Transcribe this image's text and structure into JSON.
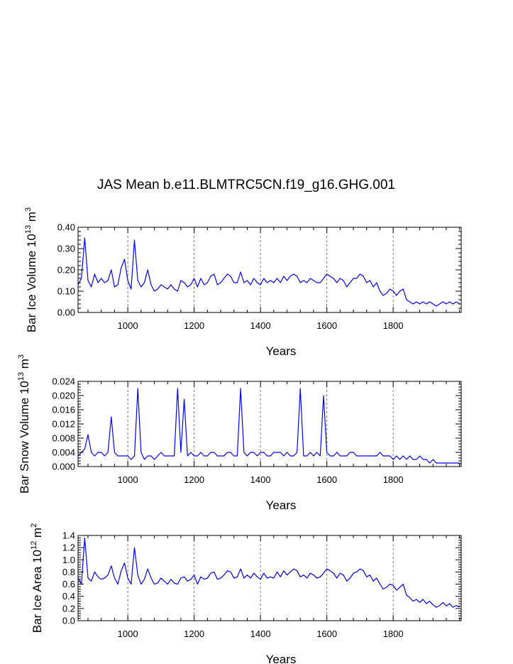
{
  "title": "JAS Mean b.e11.BLMTRC5CN.f19_g16.GHG.001",
  "chart_data": [
    {
      "type": "line",
      "ylabel": "Bar Ice Volume 10",
      "ylabel_exp": "13",
      "ylabel_unit": " m",
      "ylabel_unit_exp": "3",
      "xlabel": "Years",
      "xlim": [
        850,
        2005
      ],
      "ylim": [
        0,
        0.4
      ],
      "yticks": [
        "0.00",
        "0.10",
        "0.20",
        "0.30",
        "0.40"
      ],
      "ytick_values": [
        0,
        0.1,
        0.2,
        0.3,
        0.4
      ],
      "xticks": [
        "1000",
        "1200",
        "1400",
        "1600",
        "1800"
      ],
      "xtick_values": [
        1000,
        1200,
        1400,
        1600,
        1800
      ],
      "grid": "vertical dashed at labeled x ticks",
      "series_color": "#0000ff",
      "series": [
        {
          "x_start": 850,
          "x_step": 10,
          "values": [
            0.13,
            0.16,
            0.35,
            0.15,
            0.12,
            0.18,
            0.14,
            0.16,
            0.14,
            0.15,
            0.2,
            0.12,
            0.13,
            0.21,
            0.25,
            0.15,
            0.11,
            0.34,
            0.15,
            0.12,
            0.14,
            0.2,
            0.13,
            0.1,
            0.11,
            0.13,
            0.12,
            0.11,
            0.13,
            0.11,
            0.1,
            0.15,
            0.14,
            0.12,
            0.13,
            0.16,
            0.12,
            0.16,
            0.13,
            0.14,
            0.17,
            0.18,
            0.13,
            0.14,
            0.16,
            0.18,
            0.17,
            0.14,
            0.14,
            0.19,
            0.14,
            0.15,
            0.13,
            0.16,
            0.14,
            0.13,
            0.16,
            0.14,
            0.15,
            0.14,
            0.16,
            0.14,
            0.17,
            0.15,
            0.17,
            0.18,
            0.17,
            0.14,
            0.15,
            0.14,
            0.16,
            0.15,
            0.14,
            0.14,
            0.16,
            0.18,
            0.17,
            0.16,
            0.14,
            0.16,
            0.15,
            0.12,
            0.14,
            0.16,
            0.16,
            0.18,
            0.17,
            0.14,
            0.15,
            0.12,
            0.14,
            0.1,
            0.08,
            0.09,
            0.11,
            0.1,
            0.08,
            0.1,
            0.11,
            0.06,
            0.05,
            0.04,
            0.05,
            0.04,
            0.05,
            0.04,
            0.05,
            0.04,
            0.03,
            0.04,
            0.05,
            0.04,
            0.05,
            0.04,
            0.05,
            0.04
          ]
        }
      ]
    },
    {
      "type": "line",
      "ylabel": "Bar Snow Volume 10",
      "ylabel_exp": "13",
      "ylabel_unit": " m",
      "ylabel_unit_exp": "3",
      "xlabel": "Years",
      "xlim": [
        850,
        2005
      ],
      "ylim": [
        0,
        0.024
      ],
      "yticks": [
        "0.000",
        "0.004",
        "0.008",
        "0.012",
        "0.016",
        "0.020",
        "0.024"
      ],
      "ytick_values": [
        0,
        0.004,
        0.008,
        0.012,
        0.016,
        0.02,
        0.024
      ],
      "xticks": [
        "1000",
        "1200",
        "1400",
        "1600",
        "1800"
      ],
      "xtick_values": [
        1000,
        1200,
        1400,
        1600,
        1800
      ],
      "grid": "vertical dashed at labeled x ticks",
      "series_color": "#0000ff",
      "series": [
        {
          "x_start": 850,
          "x_step": 10,
          "values": [
            0.003,
            0.004,
            0.005,
            0.009,
            0.004,
            0.003,
            0.004,
            0.004,
            0.003,
            0.004,
            0.014,
            0.004,
            0.003,
            0.003,
            0.003,
            0.003,
            0.002,
            0.003,
            0.022,
            0.004,
            0.002,
            0.003,
            0.003,
            0.002,
            0.003,
            0.004,
            0.003,
            0.003,
            0.003,
            0.003,
            0.022,
            0.004,
            0.019,
            0.003,
            0.004,
            0.003,
            0.003,
            0.004,
            0.003,
            0.003,
            0.004,
            0.004,
            0.003,
            0.003,
            0.003,
            0.004,
            0.004,
            0.003,
            0.003,
            0.022,
            0.004,
            0.003,
            0.004,
            0.004,
            0.003,
            0.004,
            0.004,
            0.003,
            0.003,
            0.004,
            0.004,
            0.004,
            0.003,
            0.004,
            0.003,
            0.003,
            0.004,
            0.022,
            0.003,
            0.003,
            0.004,
            0.003,
            0.004,
            0.003,
            0.02,
            0.004,
            0.003,
            0.003,
            0.004,
            0.003,
            0.003,
            0.003,
            0.004,
            0.004,
            0.003,
            0.003,
            0.003,
            0.003,
            0.003,
            0.003,
            0.003,
            0.004,
            0.003,
            0.003,
            0.003,
            0.002,
            0.003,
            0.002,
            0.003,
            0.002,
            0.003,
            0.002,
            0.002,
            0.003,
            0.002,
            0.002,
            0.001,
            0.002,
            0.001,
            0.001,
            0.001,
            0.001,
            0.001,
            0.001,
            0.001,
            0.001
          ]
        }
      ]
    },
    {
      "type": "line",
      "ylabel": "Bar Ice Area 10",
      "ylabel_exp": "12",
      "ylabel_unit": " m",
      "ylabel_unit_exp": "2",
      "xlabel": "Years",
      "xlim": [
        850,
        2005
      ],
      "ylim": [
        0,
        1.4
      ],
      "yticks": [
        "0.0",
        "0.2",
        "0.4",
        "0.6",
        "0.8",
        "1.0",
        "1.2",
        "1.4"
      ],
      "ytick_values": [
        0,
        0.2,
        0.4,
        0.6,
        0.8,
        1.0,
        1.2,
        1.4
      ],
      "xticks": [
        "1000",
        "1200",
        "1400",
        "1600",
        "1800"
      ],
      "xtick_values": [
        1000,
        1200,
        1400,
        1600,
        1800
      ],
      "grid": "vertical dashed at labeled x ticks",
      "series_color": "#0000ff",
      "series": [
        {
          "x_start": 850,
          "x_step": 10,
          "values": [
            0.7,
            0.6,
            1.36,
            0.7,
            0.65,
            0.8,
            0.72,
            0.68,
            0.7,
            0.75,
            0.9,
            0.7,
            0.6,
            0.82,
            0.95,
            0.7,
            0.6,
            1.2,
            0.75,
            0.6,
            0.68,
            0.85,
            0.7,
            0.6,
            0.62,
            0.7,
            0.65,
            0.6,
            0.68,
            0.62,
            0.6,
            0.7,
            0.72,
            0.65,
            0.68,
            0.75,
            0.6,
            0.72,
            0.68,
            0.7,
            0.78,
            0.8,
            0.68,
            0.7,
            0.75,
            0.82,
            0.8,
            0.7,
            0.72,
            0.85,
            0.7,
            0.75,
            0.7,
            0.78,
            0.72,
            0.68,
            0.78,
            0.7,
            0.72,
            0.7,
            0.8,
            0.72,
            0.82,
            0.75,
            0.8,
            0.85,
            0.82,
            0.72,
            0.75,
            0.7,
            0.78,
            0.75,
            0.7,
            0.72,
            0.78,
            0.85,
            0.82,
            0.78,
            0.7,
            0.78,
            0.75,
            0.65,
            0.7,
            0.78,
            0.8,
            0.85,
            0.82,
            0.72,
            0.75,
            0.65,
            0.7,
            0.6,
            0.52,
            0.55,
            0.6,
            0.58,
            0.5,
            0.55,
            0.6,
            0.42,
            0.38,
            0.32,
            0.35,
            0.3,
            0.35,
            0.28,
            0.32,
            0.26,
            0.22,
            0.25,
            0.3,
            0.24,
            0.28,
            0.22,
            0.25,
            0.22
          ]
        }
      ]
    }
  ]
}
